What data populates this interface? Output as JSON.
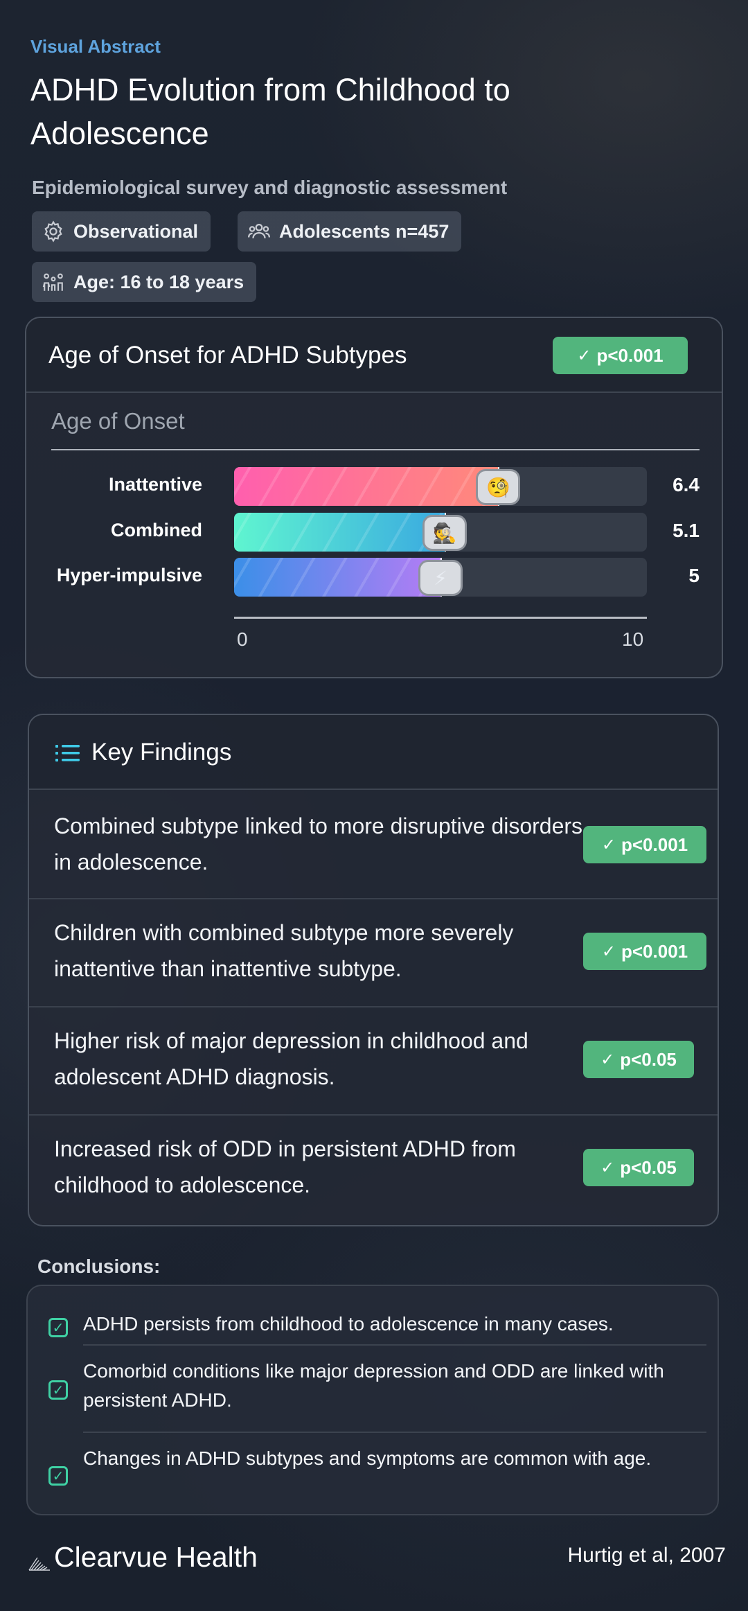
{
  "header": {
    "kicker": "Visual Abstract",
    "title": "ADHD Evolution from Childhood to Adolescence",
    "subtitle": "Epidemiological survey and diagnostic assessment",
    "chips": [
      {
        "icon": "gear-icon",
        "label": "Observational"
      },
      {
        "icon": "people-icon",
        "label": "Adolescents n=457"
      },
      {
        "icon": "family-icon",
        "label": "Age: 16 to 18 years"
      }
    ]
  },
  "chart": {
    "title": "Age of Onset for ADHD Subtypes",
    "significance": "p<0.001",
    "sublabel": "Age of Onset",
    "axis_min_label": "0",
    "axis_max_label": "10"
  },
  "chart_data": {
    "type": "bar",
    "orientation": "horizontal",
    "title": "Age of Onset for ADHD Subtypes",
    "categories": [
      "Inattentive",
      "Combined",
      "Hyper-impulsive"
    ],
    "values": [
      6.4,
      5.1,
      5
    ],
    "value_labels": [
      "6.4",
      "5.1",
      "5"
    ],
    "xlim": [
      0,
      10
    ],
    "icons": [
      "thinking-face-icon",
      "detective-icon",
      "lightning-icon"
    ],
    "colors": [
      [
        "#ff5fae",
        "#ff8a7a"
      ],
      [
        "#5ff5d0",
        "#3aa9e0"
      ],
      [
        "#3b8fe8",
        "#b67cf5"
      ]
    ]
  },
  "findings": {
    "title": "Key Findings",
    "items": [
      {
        "text": "Combined subtype linked to more disruptive disorders in adolescence.",
        "p": "p<0.001"
      },
      {
        "text": "Children with combined subtype more severely inattentive than inattentive subtype.",
        "p": "p<0.001"
      },
      {
        "text": "Higher risk of major depression in childhood and adolescent ADHD diagnosis.",
        "p": "p<0.05"
      },
      {
        "text": "Increased risk of ODD in persistent ADHD from childhood to adolescence.",
        "p": "p<0.05"
      }
    ]
  },
  "conclusions": {
    "label": "Conclusions:",
    "items": [
      "ADHD persists from childhood to adolescence in many cases.",
      "Comorbid conditions like major depression and ODD are linked with persistent ADHD.",
      "Changes in ADHD subtypes and symptoms are common with age."
    ]
  },
  "footer": {
    "brand": "Clearvue Health",
    "citation": "Hurtig et al, 2007"
  }
}
